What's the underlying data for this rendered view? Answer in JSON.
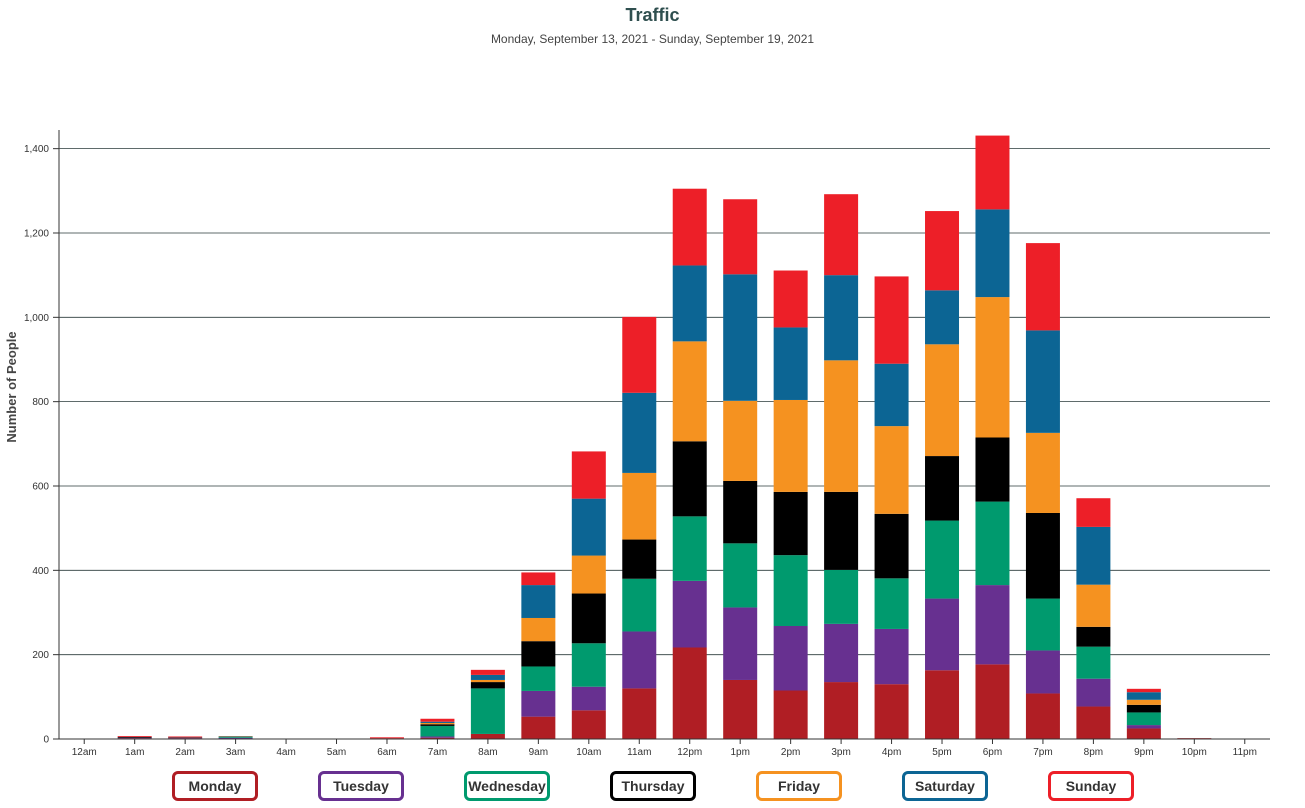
{
  "chart_data": {
    "type": "bar",
    "stacked": true,
    "title": "Traffic",
    "subtitle": "Monday, September 13, 2021 - Sunday, September 19, 2021",
    "xlabel": "",
    "ylabel": "Number of People",
    "ylim": [
      0,
      1430
    ],
    "yticks": [
      0,
      200,
      400,
      600,
      800,
      1000,
      1200,
      1400
    ],
    "ytick_labels": [
      "0",
      "200",
      "400",
      "600",
      "800",
      "1,000",
      "1,200",
      "1,400"
    ],
    "grid": true,
    "legend_position": "bottom",
    "categories": [
      "12am",
      "1am",
      "2am",
      "3am",
      "4am",
      "5am",
      "6am",
      "7am",
      "8am",
      "9am",
      "10am",
      "11am",
      "12pm",
      "1pm",
      "2pm",
      "3pm",
      "4pm",
      "5pm",
      "6pm",
      "7pm",
      "8pm",
      "9pm",
      "10pm",
      "11pm"
    ],
    "series": [
      {
        "name": "Monday",
        "color": "#b01e24",
        "values": [
          0,
          2,
          2,
          0,
          0,
          0,
          2,
          3,
          12,
          53,
          68,
          120,
          217,
          140,
          115,
          135,
          130,
          163,
          177,
          108,
          77,
          25,
          2,
          0
        ]
      },
      {
        "name": "Tuesday",
        "color": "#673090",
        "values": [
          0,
          1,
          1,
          3,
          0,
          0,
          0,
          3,
          0,
          61,
          56,
          135,
          158,
          172,
          153,
          138,
          131,
          170,
          188,
          102,
          66,
          8,
          0,
          0
        ]
      },
      {
        "name": "Wednesday",
        "color": "#009a6e",
        "values": [
          0,
          0,
          0,
          2,
          0,
          0,
          0,
          25,
          108,
          58,
          103,
          125,
          153,
          152,
          168,
          128,
          120,
          185,
          198,
          123,
          76,
          30,
          0,
          0
        ]
      },
      {
        "name": "Thursday",
        "color": "#000000",
        "values": [
          0,
          2,
          1,
          0,
          0,
          0,
          0,
          4,
          15,
          60,
          118,
          93,
          178,
          148,
          150,
          185,
          153,
          153,
          152,
          203,
          47,
          18,
          0,
          0
        ]
      },
      {
        "name": "Friday",
        "color": "#f59220",
        "values": [
          0,
          0,
          0,
          1,
          0,
          0,
          0,
          3,
          5,
          55,
          90,
          158,
          237,
          190,
          218,
          312,
          208,
          265,
          333,
          190,
          100,
          12,
          0,
          0
        ]
      },
      {
        "name": "Saturday",
        "color": "#0c6594",
        "values": [
          0,
          0,
          0,
          1,
          0,
          0,
          0,
          3,
          12,
          78,
          135,
          190,
          180,
          300,
          172,
          202,
          148,
          128,
          208,
          243,
          137,
          18,
          0,
          0
        ]
      },
      {
        "name": "Sunday",
        "color": "#ed1f28",
        "values": [
          0,
          2,
          2,
          0,
          0,
          0,
          2,
          7,
          12,
          30,
          112,
          180,
          182,
          178,
          135,
          192,
          207,
          188,
          175,
          207,
          68,
          8,
          0,
          0
        ]
      }
    ]
  }
}
